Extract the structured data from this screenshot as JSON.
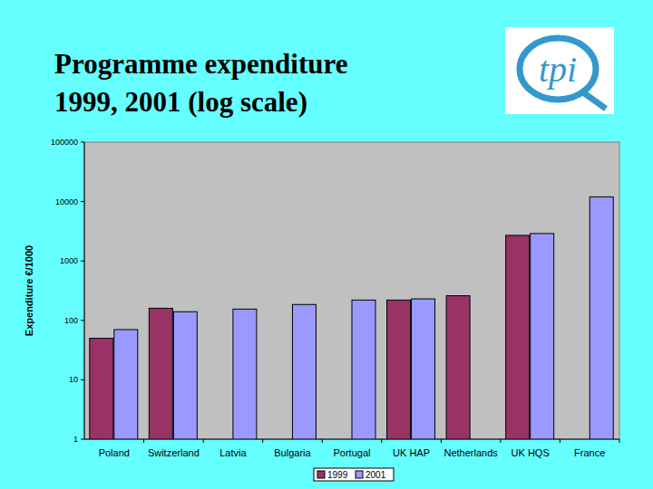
{
  "chart_data": {
    "type": "bar",
    "title": "Programme expenditure 1999, 2001 (log scale)",
    "y_label": "Expenditure €/1000",
    "annotations": [
      "tpi"
    ],
    "categories": [
      "Poland",
      "Switzerland",
      "Latvia",
      "Bulgaria",
      "Portugal",
      "UK HAP",
      "Netherlands",
      "UK HQS",
      "France"
    ],
    "series": [
      {
        "name": "1999",
        "color": "#993366",
        "values": [
          50,
          160,
          null,
          null,
          null,
          220,
          260,
          2700,
          null
        ]
      },
      {
        "name": "2001",
        "color": "#9999FF",
        "values": [
          70,
          140,
          155,
          185,
          220,
          230,
          null,
          2900,
          12000
        ]
      }
    ],
    "ylim": [
      1,
      100000
    ],
    "yticks": [
      1,
      10,
      100,
      1000,
      10000,
      100000
    ],
    "log": "y",
    "grid": false,
    "legend": "bottom"
  }
}
